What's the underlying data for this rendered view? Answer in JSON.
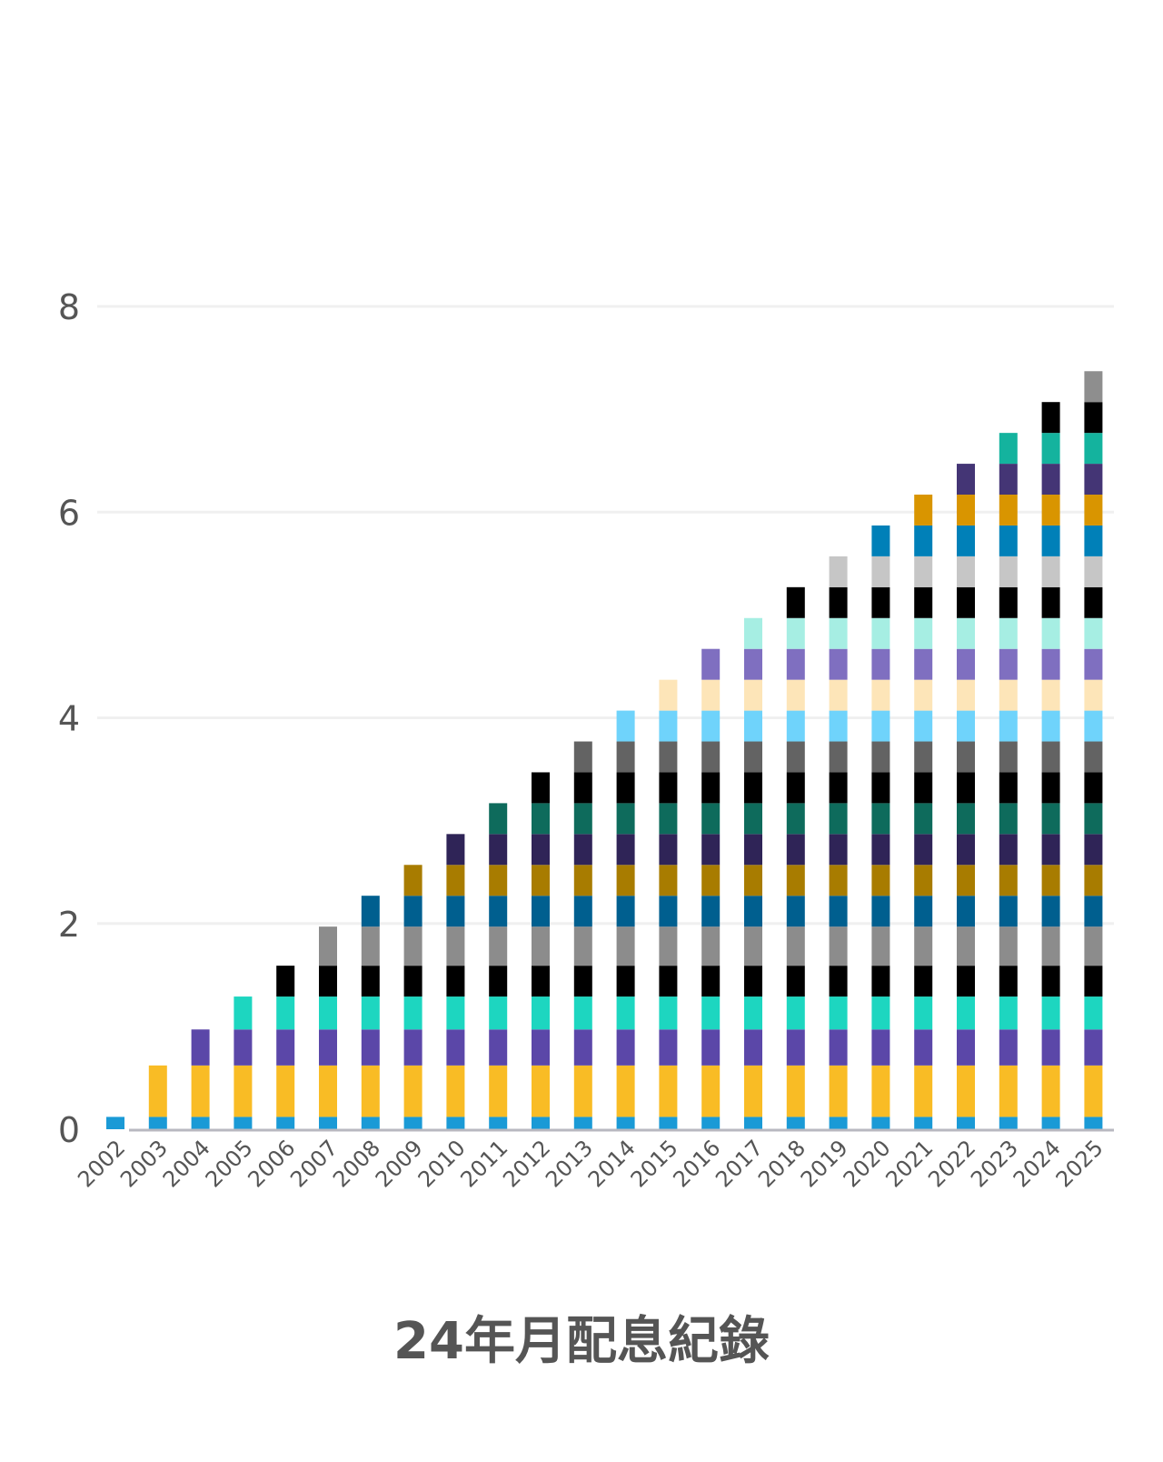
{
  "chart_data": {
    "type": "bar",
    "stacked": true,
    "title": "24年月配息紀錄",
    "xlabel": "",
    "ylabel": "",
    "ylim": [
      0,
      8
    ],
    "yticks": [
      "0",
      "2",
      "4",
      "6",
      "8"
    ],
    "grid": true,
    "legend": "none",
    "categories": [
      "2002",
      "2003",
      "2004",
      "2005",
      "2006",
      "2007",
      "2008",
      "2009",
      "2010",
      "2011",
      "2012",
      "2013",
      "2014",
      "2015",
      "2016",
      "2017",
      "2018",
      "2019",
      "2020",
      "2021",
      "2022",
      "2023",
      "2024",
      "2025"
    ],
    "layer_values": [
      0.12,
      0.5,
      0.35,
      0.32,
      0.3,
      0.38,
      0.3,
      0.3,
      0.3,
      0.3,
      0.3,
      0.3,
      0.3,
      0.3,
      0.3,
      0.3,
      0.3,
      0.3,
      0.3,
      0.3,
      0.3,
      0.3,
      0.3,
      0.3
    ],
    "layer_note": "Each year's bar stacks the layers added in every year up to and including it; total for 2025 ≈ 7.36",
    "totals": [
      0.12,
      0.62,
      0.97,
      1.29,
      1.59,
      1.97,
      2.27,
      2.57,
      2.87,
      3.17,
      3.47,
      3.77,
      4.07,
      4.37,
      4.67,
      4.97,
      5.27,
      5.57,
      5.87,
      6.17,
      6.47,
      6.77,
      7.07,
      7.37
    ],
    "layer_colors": [
      "#1a9ad6",
      "#f9bc25",
      "#5b47a8",
      "#1dd6c0",
      "#000000",
      "#8c8c8c",
      "#005f8f",
      "#a87c00",
      "#2f2457",
      "#0e6b5c",
      "#000000",
      "#636363",
      "#6fd3fb",
      "#fde5b8",
      "#7f6fc0",
      "#a6eee3",
      "#000000",
      "#c6c6c6",
      "#0080b8",
      "#d99500",
      "#443575",
      "#14b39e",
      "#000000",
      "#8e8e8e"
    ]
  },
  "colors": {
    "axis": "#b8b8c0",
    "grid": "#f0f0f0",
    "text": "#555555"
  }
}
